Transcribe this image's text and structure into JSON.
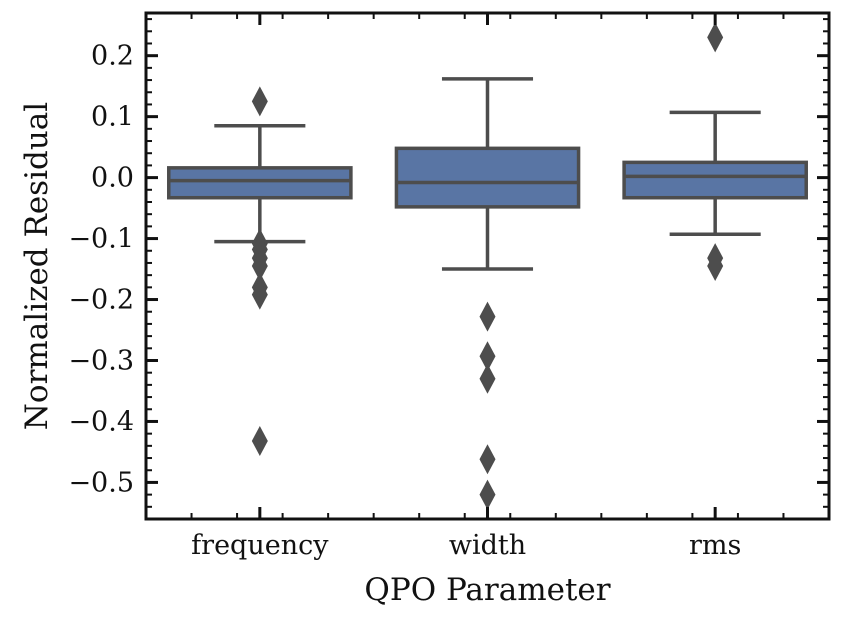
{
  "chart_data": {
    "type": "box",
    "xlabel": "QPO Parameter",
    "ylabel": "Normalized Residual",
    "categories": [
      "frequency",
      "width",
      "rms"
    ],
    "ylim": [
      -0.56,
      0.27
    ],
    "yticks": [
      0.2,
      0.1,
      0.0,
      -0.1,
      -0.2,
      -0.3,
      -0.4,
      -0.5
    ],
    "ytick_labels": [
      "0.2",
      "0.1",
      "0.0",
      "−0.1",
      "−0.2",
      "−0.3",
      "−0.4",
      "−0.5"
    ],
    "box_color": "#5975a4",
    "line_color": "#4d4d4d",
    "grid": false,
    "boxes": [
      {
        "category": "frequency",
        "whisker_low": -0.105,
        "q1": -0.033,
        "median": -0.005,
        "q3": 0.016,
        "whisker_high": 0.085,
        "outliers": [
          0.125,
          -0.108,
          -0.118,
          -0.132,
          -0.145,
          -0.18,
          -0.192,
          -0.432
        ]
      },
      {
        "category": "width",
        "whisker_low": -0.15,
        "q1": -0.048,
        "median": -0.008,
        "q3": 0.048,
        "whisker_high": 0.162,
        "outliers": [
          -0.228,
          -0.293,
          -0.33,
          -0.462,
          -0.52
        ]
      },
      {
        "category": "rms",
        "whisker_low": -0.093,
        "q1": -0.033,
        "median": 0.002,
        "q3": 0.025,
        "whisker_high": 0.107,
        "outliers": [
          0.23,
          -0.132,
          -0.145
        ]
      }
    ]
  }
}
